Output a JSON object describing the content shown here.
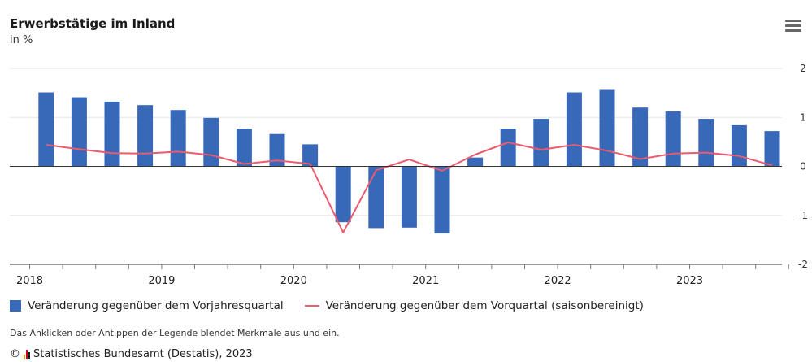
{
  "title": "Erwerbstätige im Inland",
  "subtitle": "in %",
  "legend_note": "Das Anklicken oder Antippen der Legende blendet Merkmale aus und ein.",
  "credit": {
    "symbol": "©",
    "text": "Statistisches Bundesamt (Destatis), 2023"
  },
  "colors": {
    "bar": "#3869b8",
    "line": "#ec5a6e",
    "grid": "#e6e6e6",
    "axis": "#333333"
  },
  "chart_data": {
    "type": "bar",
    "categories": [
      "2018 Q1",
      "2018 Q2",
      "2018 Q3",
      "2018 Q4",
      "2019 Q1",
      "2019 Q2",
      "2019 Q3",
      "2019 Q4",
      "2020 Q1",
      "2020 Q2",
      "2020 Q3",
      "2020 Q4",
      "2021 Q1",
      "2021 Q2",
      "2021 Q3",
      "2021 Q4",
      "2022 Q1",
      "2022 Q2",
      "2022 Q3",
      "2022 Q4",
      "2023 Q1",
      "2023 Q2",
      "2023 Q3"
    ],
    "x_tick_labels": [
      "2018",
      "2019",
      "2020",
      "2021",
      "2022",
      "2023"
    ],
    "ylim": [
      -2,
      2
    ],
    "y_ticks": [
      2,
      1,
      0,
      -1,
      -2
    ],
    "y_axis_side": "right",
    "grid": true,
    "legend_position": "bottom-left",
    "series": [
      {
        "name": "Veränderung gegenüber dem Vorjahresquartal",
        "type": "bar",
        "values": [
          1.51,
          1.41,
          1.32,
          1.25,
          1.15,
          0.99,
          0.77,
          0.66,
          0.45,
          -1.14,
          -1.26,
          -1.25,
          -1.37,
          0.18,
          0.77,
          0.97,
          1.51,
          1.56,
          1.2,
          1.12,
          0.97,
          0.84,
          0.72
        ]
      },
      {
        "name": "Veränderung gegenüber dem Vorquartal (saisonbereinigt)",
        "type": "line",
        "values": [
          0.44,
          0.35,
          0.27,
          0.26,
          0.3,
          0.23,
          0.05,
          0.12,
          0.05,
          -1.35,
          -0.08,
          0.14,
          -0.09,
          0.24,
          0.49,
          0.34,
          0.44,
          0.32,
          0.15,
          0.26,
          0.28,
          0.21,
          0.02
        ]
      }
    ]
  }
}
